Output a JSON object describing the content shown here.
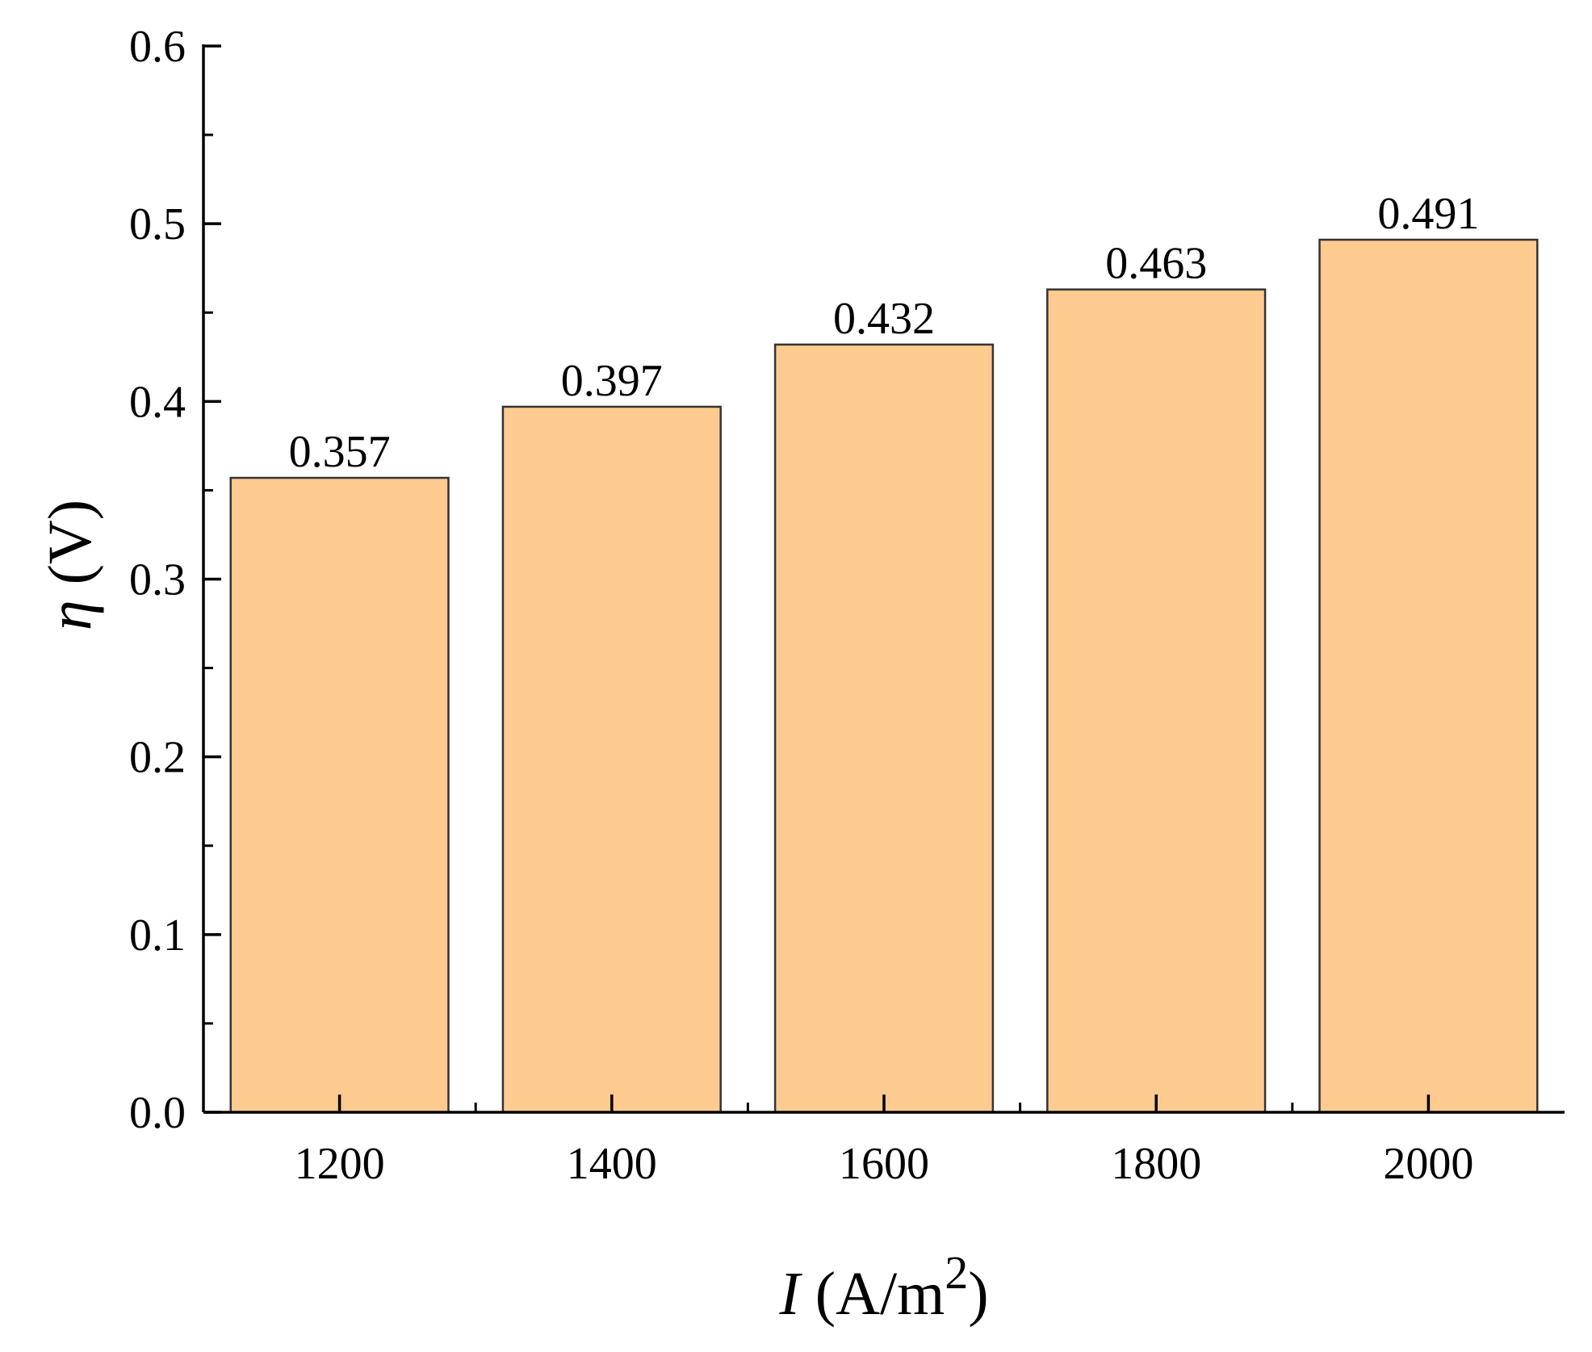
{
  "chart_data": {
    "type": "bar",
    "categories": [
      "1200",
      "1400",
      "1600",
      "1800",
      "2000"
    ],
    "values": [
      0.357,
      0.397,
      0.432,
      0.463,
      0.491
    ],
    "data_labels": [
      "0.357",
      "0.397",
      "0.432",
      "0.463",
      "0.491"
    ],
    "y_ticks": [
      "0.0",
      "0.1",
      "0.2",
      "0.3",
      "0.4",
      "0.5",
      "0.6"
    ],
    "ylim": [
      0,
      0.6
    ],
    "xlabel": {
      "symbol": "I",
      "unit_open": " (A/m",
      "unit_sup": "2",
      "unit_close": ")"
    },
    "ylabel": {
      "symbol": "η",
      "unit": " (V)"
    },
    "grid": false,
    "legend": "none",
    "bar_fill": "#FDCA8F",
    "bar_stroke": "#333333",
    "axis_color": "#000000"
  }
}
